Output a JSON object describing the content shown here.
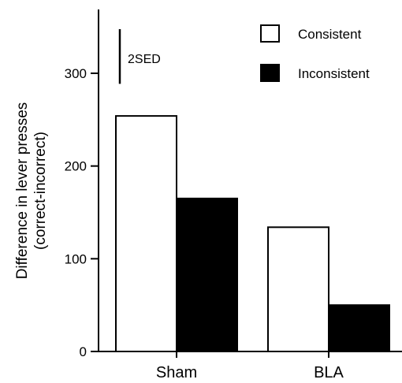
{
  "chart_data": {
    "type": "bar",
    "categories": [
      "Sham",
      "BLA"
    ],
    "series": [
      {
        "name": "Consistent",
        "values": [
          254,
          134
        ],
        "color": "#ffffff"
      },
      {
        "name": "Inconsistent",
        "values": [
          165,
          50
        ],
        "color": "#000000"
      }
    ],
    "title": "",
    "xlabel": "",
    "ylabel": [
      "Difference in lever presses",
      "(correct-incorrect)"
    ],
    "ylim": [
      0,
      360
    ],
    "yticks": [
      0,
      100,
      200,
      300
    ],
    "grid": false,
    "legend_position": "top-right",
    "annotation": {
      "label": "2SED",
      "value": 50
    }
  }
}
